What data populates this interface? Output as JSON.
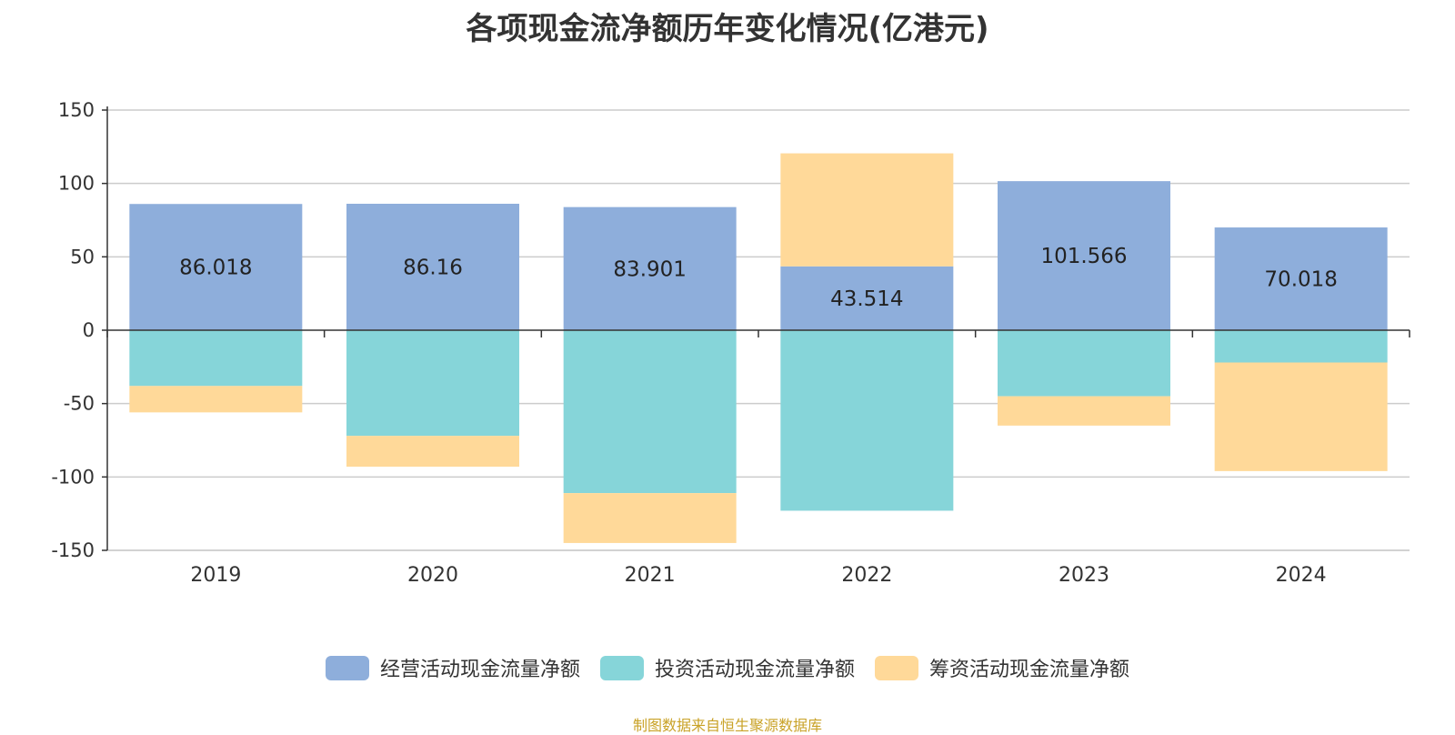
{
  "title": "各项现金流净额历年变化情况(亿港元)",
  "source_note": "制图数据来自恒生聚源数据库",
  "colors": {
    "operating": "#8eaedb",
    "investing": "#86d5d9",
    "financing": "#ffd999"
  },
  "chart_data": {
    "type": "bar",
    "stacked": true,
    "title": "各项现金流净额历年变化情况(亿港元)",
    "categories": [
      "2019",
      "2020",
      "2021",
      "2022",
      "2023",
      "2024"
    ],
    "ylim": [
      -150,
      150
    ],
    "yticks": [
      150,
      100,
      50,
      0,
      -50,
      -100,
      -150
    ],
    "grid": true,
    "legend_position": "bottom",
    "series": [
      {
        "name": "经营活动现金流量净额",
        "values": [
          86.018,
          86.16,
          83.901,
          43.514,
          101.566,
          70.018
        ],
        "labels": [
          "86.018",
          "86.16",
          "83.901",
          "43.514",
          "101.566",
          "70.018"
        ],
        "color": "#8eaedb"
      },
      {
        "name": "投资活动现金流量净额",
        "values": [
          -38,
          -72,
          -111,
          -123,
          -45,
          -22
        ],
        "color": "#86d5d9"
      },
      {
        "name": "筹资活动现金流量净额",
        "values": [
          -18,
          -21,
          -34,
          77,
          -20,
          -74
        ],
        "color": "#ffd999"
      }
    ]
  }
}
